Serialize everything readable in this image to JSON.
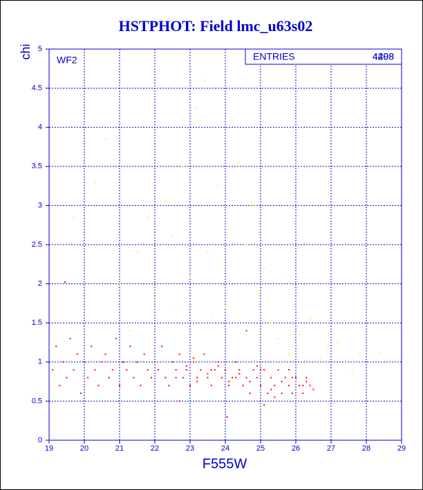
{
  "chart_data": {
    "type": "scatter",
    "title": "HSTPHOT: Field lmc_u63s02",
    "xlabel": "F555W",
    "ylabel": "chi",
    "annotation": "WF2",
    "stats_label": "ENTRIES",
    "stats_values": [
      "4498",
      "4208"
    ],
    "xlim": [
      19,
      29
    ],
    "ylim": [
      0,
      5
    ],
    "xticks": [
      19,
      20,
      21,
      22,
      23,
      24,
      25,
      26,
      27,
      28,
      29
    ],
    "yticks": [
      0,
      0.5,
      1,
      1.5,
      2,
      2.5,
      3,
      3.5,
      4,
      4.5,
      5
    ],
    "grid": true,
    "series": [
      {
        "color": "#ff0000",
        "x": [
          19.1,
          19.2,
          19.3,
          19.4,
          19.5,
          19.6,
          19.7,
          19.8,
          19.9,
          20.0,
          20.1,
          20.2,
          20.3,
          20.4,
          20.5,
          20.6,
          20.7,
          20.8,
          20.9,
          21.0,
          21.1,
          21.2,
          21.3,
          21.4,
          21.5,
          21.6,
          21.7,
          21.8,
          21.9,
          22.0,
          22.1,
          22.2,
          22.3,
          22.4,
          22.5,
          22.6,
          22.7,
          22.8,
          22.9,
          23.0,
          23.1,
          23.2,
          23.3,
          23.4,
          23.5,
          23.6,
          23.7,
          23.8,
          23.9,
          24.0,
          24.1,
          24.2,
          24.3,
          24.4,
          24.5,
          24.6,
          24.7,
          24.8,
          24.9,
          25.0,
          25.1,
          25.2,
          25.3,
          25.4,
          25.5,
          25.6,
          25.7,
          25.8,
          25.9,
          26.0,
          26.1,
          26.2,
          26.3,
          26.4,
          26.5,
          22.6,
          22.9,
          23.2,
          23.5,
          23.8,
          24.1,
          24.4,
          24.7,
          25.0,
          25.3,
          25.6,
          25.9,
          26.2,
          23.1,
          23.6,
          24.3,
          24.9,
          25.4,
          25.8,
          26.3,
          19.45,
          22.7,
          24.05,
          24.6,
          25.1
        ],
        "y": [
          0.9,
          1.2,
          0.7,
          1.0,
          0.8,
          1.3,
          0.9,
          1.1,
          0.6,
          1.0,
          0.8,
          1.2,
          0.9,
          0.7,
          1.0,
          1.1,
          0.8,
          0.9,
          1.3,
          0.7,
          1.0,
          0.9,
          1.2,
          0.8,
          1.0,
          0.7,
          1.1,
          0.9,
          0.8,
          1.0,
          0.9,
          1.2,
          0.8,
          0.7,
          1.0,
          0.9,
          1.1,
          0.8,
          0.9,
          0.7,
          1.0,
          0.8,
          0.9,
          1.1,
          0.8,
          0.7,
          0.9,
          1.0,
          0.8,
          0.9,
          0.7,
          0.8,
          1.0,
          0.9,
          0.7,
          0.8,
          0.6,
          0.9,
          0.8,
          0.7,
          0.9,
          0.6,
          0.8,
          0.7,
          0.9,
          0.6,
          0.8,
          0.7,
          0.6,
          0.8,
          0.7,
          0.6,
          0.8,
          0.7,
          0.65,
          0.8,
          0.95,
          0.75,
          0.85,
          0.95,
          0.75,
          0.85,
          0.75,
          0.9,
          0.65,
          0.75,
          0.8,
          0.7,
          1.05,
          0.9,
          0.8,
          0.95,
          0.55,
          0.9,
          0.75,
          2.02,
          0.5,
          0.3,
          1.4,
          0.45
        ]
      },
      {
        "color": "#ffff00",
        "x": [
          21.5,
          22.0,
          22.5,
          22.8,
          23.1,
          23.2,
          23.4,
          23.0,
          23.6,
          23.8,
          24.1,
          24.4,
          24.6,
          24.9,
          25.1,
          25.3,
          25.5,
          25.8,
          26.1,
          26.4,
          26.7,
          27.2,
          27.6,
          27.8,
          28.4,
          20.6,
          20.3,
          19.7,
          21.8,
          22.3,
          24.0,
          24.8,
          25.6,
          21.3,
          22.6,
          23.9,
          25.9,
          26.9,
          21.0,
          23.5
        ],
        "y": [
          2.4,
          1.8,
          2.6,
          3.5,
          4.05,
          4.25,
          4.6,
          2.1,
          1.6,
          3.25,
          2.7,
          3.55,
          2.5,
          1.9,
          2.2,
          1.5,
          1.3,
          1.1,
          1.35,
          1.55,
          1.05,
          1.25,
          0.85,
          1.1,
          1.1,
          3.85,
          3.3,
          2.85,
          2.85,
          3.05,
          1.7,
          3.0,
          2.05,
          1.4,
          1.65,
          2.25,
          1.2,
          1.2,
          2.0,
          2.4
        ]
      }
    ]
  }
}
